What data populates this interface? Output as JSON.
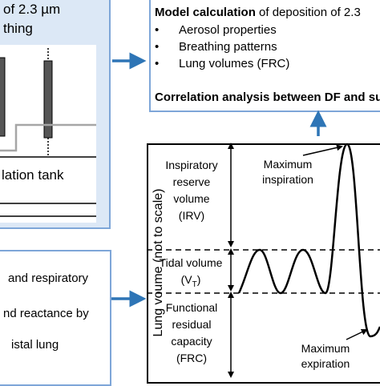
{
  "top_left": {
    "line1": "of 2.3 µm",
    "line2": "thing",
    "tank_label": "lation tank"
  },
  "top_right": {
    "heading_bold": "Model calculation",
    "heading_rest": " of deposition of 2.3",
    "bullets": [
      "Aerosol properties",
      "Breathing patterns",
      "Lung volumes (FRC)"
    ],
    "correlation": "Correlation analysis between DF and su"
  },
  "bottom_left": {
    "line1": "and respiratory",
    "line2": "nd reactance by",
    "line3": "istal lung"
  },
  "chart": {
    "ylabel": "Lung voume (not to scale)",
    "irv_lines": [
      "Inspiratory",
      "reserve",
      "volume",
      "(IRV)"
    ],
    "tidal_label": "Tidal volume",
    "vt_open": "(V",
    "vt_sub": "T",
    "vt_close": ")",
    "frc_lines": [
      "Functional",
      "residual",
      "capacity",
      "(FRC)"
    ],
    "max_insp": [
      "Maximum",
      "inspiration"
    ],
    "max_exp": [
      "Maximum",
      "expiration"
    ]
  },
  "colors": {
    "panel_border": "#7ea6d8",
    "panel_fill": "#dce8f6",
    "arrow": "#2e75b6",
    "dark_bar": "#555555",
    "grey_line": "#a6a6a6"
  }
}
